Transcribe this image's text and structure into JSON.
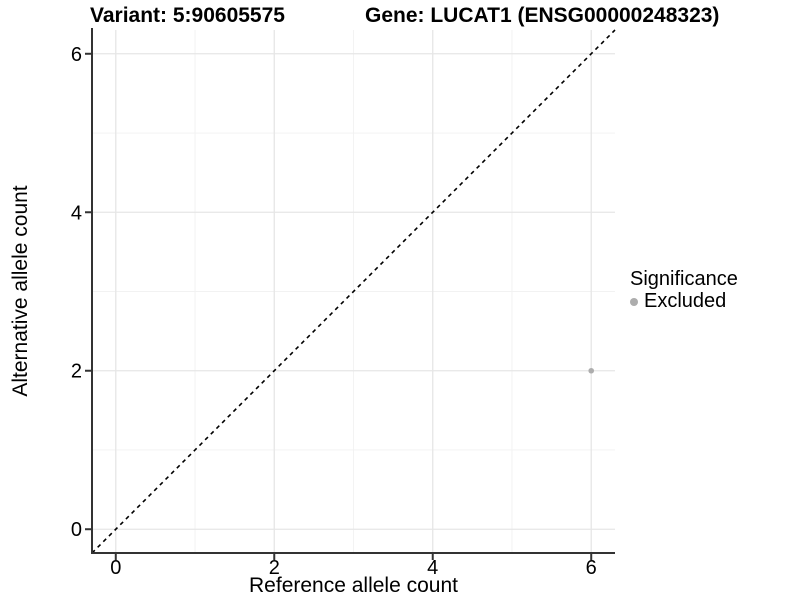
{
  "chart_data": {
    "type": "scatter",
    "title_variant": "Variant: 5:90605575",
    "title_gene": "Gene: LUCAT1 (ENSG00000248323)",
    "xlabel": "Reference allele count",
    "ylabel": "Alternative allele count",
    "xlim": [
      -0.3,
      6.3
    ],
    "ylim": [
      -0.3,
      6.3
    ],
    "xticks": [
      0,
      2,
      4,
      6
    ],
    "yticks": [
      0,
      2,
      4,
      6
    ],
    "xminor": [
      1,
      3,
      5
    ],
    "yminor": [
      1,
      3,
      5
    ],
    "grid": "major+minor",
    "identity_line": {
      "style": "dashed",
      "from": -0.3,
      "to": 6.3
    },
    "series": [
      {
        "name": "Excluded",
        "color": "#adadad",
        "points": [
          [
            6,
            2
          ]
        ]
      }
    ],
    "legend": {
      "title": "Significance",
      "position": "right",
      "items": [
        {
          "label": "Excluded",
          "color": "#adadad",
          "marker": "circle"
        }
      ]
    }
  },
  "colors": {
    "background": "#ffffff",
    "grid_major": "#e6e6e6",
    "grid_minor": "#f2f2f2",
    "axis_line": "#333333",
    "text": "#000000",
    "identity_line": "#000000"
  }
}
